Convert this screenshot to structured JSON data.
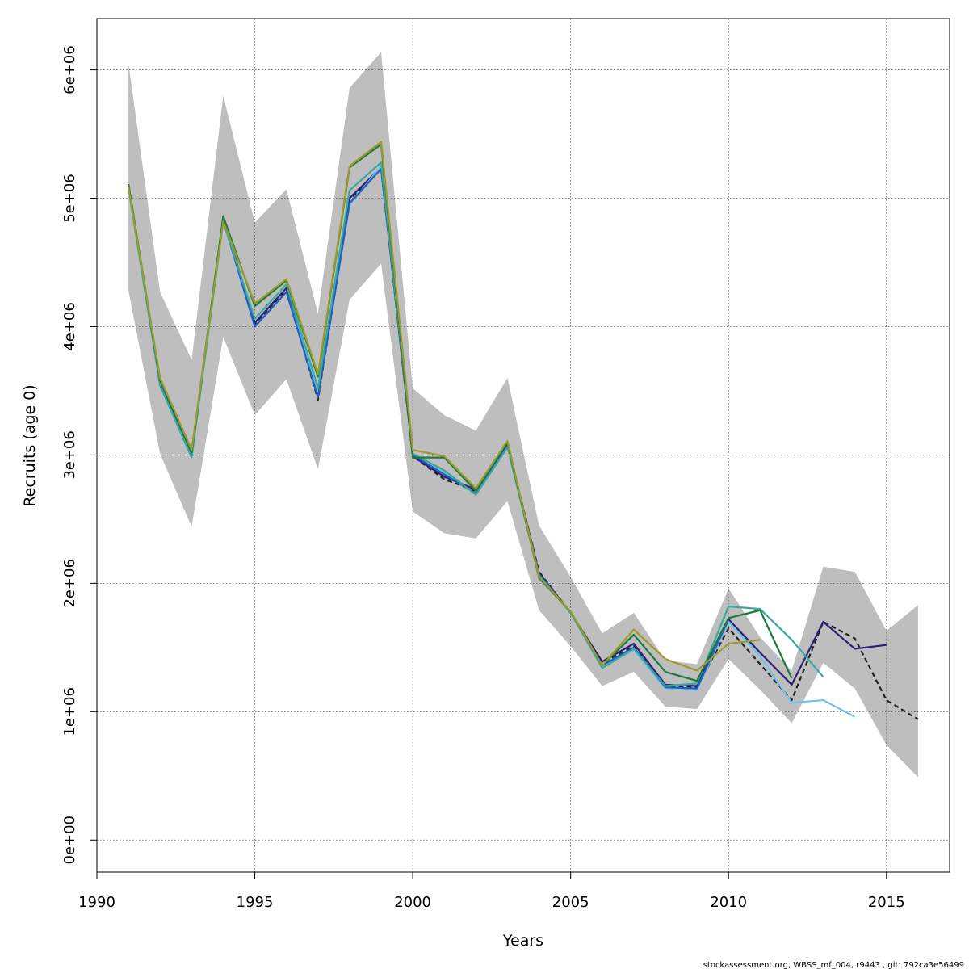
{
  "chart_data": {
    "type": "line",
    "title": "",
    "xlabel": "Years",
    "ylabel": "Recruits (age 0)",
    "xlim": [
      1990,
      2017
    ],
    "ylim": [
      -250000,
      6400000
    ],
    "xticks": [
      1990,
      1995,
      2000,
      2005,
      2010,
      2015
    ],
    "yticks": [
      0,
      1000000,
      2000000,
      3000000,
      4000000,
      5000000,
      6000000
    ],
    "ytick_labels": [
      "0e+00",
      "1e+06",
      "2e+06",
      "3e+06",
      "4e+06",
      "5e+06",
      "6e+06"
    ],
    "grid": true,
    "legend": "none",
    "band": {
      "color": "#bebebe",
      "x": [
        1991,
        1992,
        1993,
        1994,
        1995,
        1996,
        1997,
        1998,
        1999,
        2000,
        2001,
        2002,
        2003,
        2004,
        2005,
        2006,
        2007,
        2008,
        2009,
        2010,
        2011,
        2012,
        2013,
        2014,
        2015,
        2016
      ],
      "lower": [
        4280000,
        3010000,
        2440000,
        3920000,
        3310000,
        3590000,
        2890000,
        4210000,
        4490000,
        2560000,
        2390000,
        2350000,
        2640000,
        1790000,
        1510000,
        1200000,
        1310000,
        1040000,
        1020000,
        1410000,
        1170000,
        910000,
        1380000,
        1180000,
        740000,
        490000
      ],
      "upper": [
        6050000,
        4270000,
        3740000,
        5800000,
        4810000,
        5070000,
        4100000,
        5860000,
        6140000,
        3520000,
        3310000,
        3190000,
        3600000,
        2450000,
        2050000,
        1610000,
        1770000,
        1400000,
        1370000,
        1960000,
        1580000,
        1320000,
        2130000,
        2090000,
        1630000,
        1830000
      ]
    },
    "series": [
      {
        "color": "#222222",
        "dashed": true,
        "x": [
          1991,
          1992,
          1993,
          1994,
          1995,
          1996,
          1997,
          1998,
          1999,
          2000,
          2001,
          2002,
          2003,
          2004,
          2005,
          2006,
          2007,
          2008,
          2009,
          2010,
          2011,
          2012,
          2013,
          2014,
          2015,
          2016
        ],
        "values": [
          5100000,
          3560000,
          3010000,
          4840000,
          4020000,
          4290000,
          3430000,
          4990000,
          5230000,
          2990000,
          2810000,
          2720000,
          3080000,
          2090000,
          1770000,
          1380000,
          1510000,
          1200000,
          1190000,
          1650000,
          1370000,
          1090000,
          1700000,
          1570000,
          1090000,
          940000
        ]
      },
      {
        "color": "#2e1f7a",
        "dashed": false,
        "x": [
          1991,
          1992,
          1993,
          1994,
          1995,
          1996,
          1997,
          1998,
          1999,
          2000,
          2001,
          2002,
          2003,
          2004,
          2005,
          2006,
          2007,
          2008,
          2009,
          2010,
          2011,
          2012,
          2013,
          2014,
          2015
        ],
        "values": [
          5110000,
          3560000,
          3010000,
          4850000,
          4030000,
          4300000,
          3450000,
          5000000,
          5240000,
          2990000,
          2830000,
          2730000,
          3080000,
          2080000,
          1770000,
          1390000,
          1530000,
          1210000,
          1200000,
          1720000,
          1460000,
          1210000,
          1700000,
          1490000,
          1520000
        ]
      },
      {
        "color": "#6ec3ea",
        "dashed": false,
        "x": [
          1991,
          1992,
          1993,
          1994,
          1995,
          1996,
          1997,
          1998,
          1999,
          2000,
          2001,
          2002,
          2003,
          2004,
          2005,
          2006,
          2007,
          2008,
          2009,
          2010,
          2011,
          2012,
          2013,
          2014
        ],
        "values": [
          5090000,
          3540000,
          2990000,
          4820000,
          4000000,
          4270000,
          3490000,
          4950000,
          5250000,
          3010000,
          2870000,
          2690000,
          3060000,
          2060000,
          1770000,
          1350000,
          1480000,
          1180000,
          1170000,
          1700000,
          1430000,
          1070000,
          1090000,
          960000
        ]
      },
      {
        "color": "#1f5fbf",
        "dashed": false,
        "x": [
          1991,
          1992,
          1993,
          1994,
          1995,
          1996,
          1997,
          1998,
          1999,
          2000,
          2001,
          2002,
          2003,
          2004,
          2005,
          2006,
          2007,
          2008,
          2009,
          2010
        ],
        "values": [
          5100000,
          3550000,
          3000000,
          4830000,
          4000000,
          4270000,
          3450000,
          4960000,
          5230000,
          3000000,
          2850000,
          2700000,
          3070000,
          2070000,
          1770000,
          1360000,
          1500000,
          1190000,
          1180000,
          1720000
        ]
      },
      {
        "color": "#3aa99b",
        "dashed": false,
        "x": [
          1991,
          1992,
          1993,
          1994,
          1995,
          1996,
          1997,
          1998,
          1999,
          2000,
          2001,
          2002,
          2003,
          2004,
          2005,
          2006,
          2007,
          2008,
          2009,
          2010,
          2011,
          2012,
          2013
        ],
        "values": [
          5080000,
          3540000,
          2980000,
          4820000,
          4060000,
          4330000,
          3520000,
          5060000,
          5280000,
          3010000,
          2880000,
          2690000,
          3060000,
          2060000,
          1770000,
          1340000,
          1490000,
          1200000,
          1220000,
          1820000,
          1800000,
          1560000,
          1270000
        ]
      },
      {
        "color": "#1b7a3e",
        "dashed": false,
        "x": [
          1991,
          1992,
          1993,
          1994,
          1995,
          1996,
          1997,
          1998,
          1999,
          2000,
          2001,
          2002,
          2003,
          2004,
          2005,
          2006,
          2007,
          2008,
          2009,
          2010,
          2011,
          2012
        ],
        "values": [
          5110000,
          3580000,
          3020000,
          4860000,
          4160000,
          4360000,
          3610000,
          5240000,
          5420000,
          2980000,
          2980000,
          2720000,
          3100000,
          2040000,
          1780000,
          1360000,
          1600000,
          1310000,
          1240000,
          1730000,
          1790000,
          1260000
        ]
      },
      {
        "color": "#9c9a28",
        "dashed": false,
        "x": [
          1991,
          1992,
          1993,
          1994,
          1995,
          1996,
          1997,
          1998,
          1999,
          2000,
          2001,
          2002,
          2003,
          2004,
          2005,
          2006,
          2007,
          2008,
          2009,
          2010,
          2011
        ],
        "values": [
          5090000,
          3600000,
          3040000,
          4820000,
          4180000,
          4370000,
          3630000,
          5250000,
          5440000,
          3040000,
          2990000,
          2740000,
          3110000,
          2050000,
          1780000,
          1360000,
          1640000,
          1410000,
          1320000,
          1530000,
          1560000
        ]
      }
    ]
  },
  "footer": "stockassessment.org, WBSS_mf_004, r9443 , git: 792ca3e56499"
}
